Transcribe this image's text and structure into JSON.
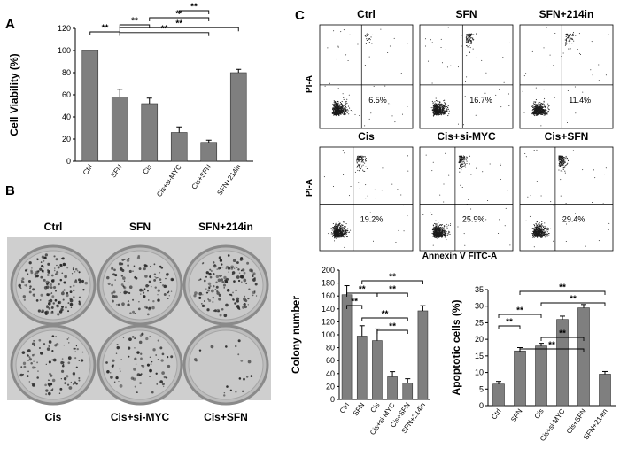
{
  "panel_labels": {
    "a": "A",
    "b": "B",
    "c": "C"
  },
  "significance_marker": "**",
  "colors": {
    "bar": "#7f7f7f",
    "bar_stroke": "#333333",
    "axis": "#000000",
    "dots": "#1a1a1a"
  },
  "chart_data": [
    {
      "id": "A",
      "type": "bar",
      "categories": [
        "Ctrl",
        "SFN",
        "Cis",
        "Cis+si-MYC",
        "Cis+SFN",
        "SFN+214in"
      ],
      "values": [
        100,
        58,
        52,
        26,
        17,
        80
      ],
      "errors": [
        0,
        7,
        5,
        5,
        2,
        3
      ],
      "ylabel": "Cell Viability (%)",
      "ylim": [
        0,
        120
      ],
      "yticks": [
        0,
        20,
        40,
        60,
        80,
        100,
        120
      ],
      "significance": [
        {
          "from": 0,
          "to": 1,
          "level": 1
        },
        {
          "from": 1,
          "to": 2,
          "level": 2
        },
        {
          "from": 2,
          "to": 4,
          "level": 3
        },
        {
          "from": 3,
          "to": 4,
          "level": 4
        },
        {
          "from": 1,
          "to": 5,
          "level": 1.6
        },
        {
          "from": 1,
          "to": 4,
          "level": 0.9
        }
      ]
    },
    {
      "id": "B",
      "type": "bar",
      "categories": [
        "Ctrl",
        "SFN",
        "Cis",
        "Cis+si-MYC",
        "Cis+SFN",
        "SFN+214in"
      ],
      "values": [
        162,
        98,
        91,
        35,
        25,
        137
      ],
      "errors": [
        14,
        16,
        18,
        8,
        7,
        8
      ],
      "ylabel": "Colony number",
      "ylim": [
        0,
        200
      ],
      "yticks": [
        0,
        20,
        40,
        60,
        80,
        100,
        120,
        140,
        160,
        180,
        200
      ],
      "significance": [
        {
          "from": 0,
          "to": 2,
          "level": 1
        },
        {
          "from": 0,
          "to": 1,
          "level": 0
        },
        {
          "from": 2,
          "to": 4,
          "level": 1
        },
        {
          "from": 1,
          "to": 4,
          "level": -1
        },
        {
          "from": 1,
          "to": 5,
          "level": 2
        },
        {
          "from": 2,
          "to": 4,
          "level": -2
        }
      ]
    },
    {
      "id": "C",
      "type": "bar",
      "categories": [
        "Ctrl",
        "SFN",
        "Cis",
        "Cis+si-MYC",
        "Cis+SFN",
        "SFN+214in"
      ],
      "values": [
        6.5,
        16.5,
        18,
        26,
        29.5,
        9.5
      ],
      "errors": [
        0.8,
        1,
        0.8,
        1,
        1,
        0.8
      ],
      "ylabel": "Apoptotic cells (%)",
      "ylim": [
        0,
        35
      ],
      "yticks": [
        0,
        5,
        10,
        15,
        20,
        25,
        30,
        35
      ],
      "significance": [
        {
          "from": 0,
          "to": 1,
          "level": 0
        },
        {
          "from": 0,
          "to": 2,
          "level": 1
        },
        {
          "from": 1,
          "to": 5,
          "level": 3
        },
        {
          "from": 2,
          "to": 5,
          "level": 2
        },
        {
          "from": 2,
          "to": 4,
          "level": -1
        },
        {
          "from": 1,
          "to": 4,
          "level": -2
        }
      ]
    }
  ],
  "facs": {
    "y_axis_label": "PI-A",
    "x_axis_label": "Annexin V FITC-A",
    "plots": [
      {
        "title": "Ctrl",
        "percent": "6.5%"
      },
      {
        "title": "SFN",
        "percent": "16.7%"
      },
      {
        "title": "SFN+214in",
        "percent": "11.4%"
      },
      {
        "title": "Cis",
        "percent": "19.2%"
      },
      {
        "title": "Cis+si-MYC",
        "percent": "25.9%"
      },
      {
        "title": "Cis+SFN",
        "percent": "29.4%"
      }
    ]
  },
  "colony_photo": {
    "labels": [
      "Ctrl",
      "SFN",
      "SFN+214in",
      "Cis",
      "Cis+si-MYC",
      "Cis+SFN"
    ]
  }
}
